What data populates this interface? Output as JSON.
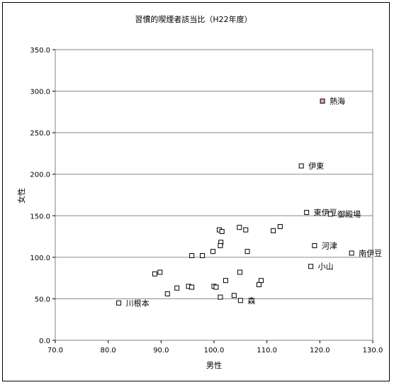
{
  "chart_data": {
    "type": "scatter",
    "title": "習慣的喫煙者該当比（H22年度）",
    "xlabel": "男性",
    "ylabel": "女性",
    "xlim": [
      70,
      130
    ],
    "ylim": [
      0,
      350
    ],
    "xticks": [
      "70.0",
      "80.0",
      "90.0",
      "100.0",
      "110.0",
      "120.0",
      "130.0"
    ],
    "yticks": [
      "0.0",
      "50.0",
      "100.0",
      "150.0",
      "200.0",
      "250.0",
      "300.0",
      "350.0"
    ],
    "grid": "horizontal",
    "marker_color": "#000000",
    "highlight_color": "#f0a0b8",
    "points": [
      {
        "x": 120.5,
        "y": 288,
        "label": "熱海",
        "highlight": true
      },
      {
        "x": 116.5,
        "y": 210,
        "label": "伊東"
      },
      {
        "x": 117.5,
        "y": 154,
        "label": "東伊豆"
      },
      {
        "x": 122.0,
        "y": 152,
        "label": "御殿場"
      },
      {
        "x": 119.0,
        "y": 114,
        "label": "河津"
      },
      {
        "x": 126.0,
        "y": 105,
        "label": "南伊豆"
      },
      {
        "x": 118.3,
        "y": 89,
        "label": "小山"
      },
      {
        "x": 82.0,
        "y": 45,
        "label": "川根本"
      },
      {
        "x": 105.0,
        "y": 48,
        "label": "森"
      },
      {
        "x": 101.0,
        "y": 133
      },
      {
        "x": 101.5,
        "y": 131
      },
      {
        "x": 104.8,
        "y": 136
      },
      {
        "x": 106.0,
        "y": 133
      },
      {
        "x": 111.2,
        "y": 132
      },
      {
        "x": 112.5,
        "y": 137
      },
      {
        "x": 101.3,
        "y": 118
      },
      {
        "x": 101.2,
        "y": 114
      },
      {
        "x": 99.8,
        "y": 107
      },
      {
        "x": 106.3,
        "y": 107
      },
      {
        "x": 95.8,
        "y": 102
      },
      {
        "x": 97.8,
        "y": 102
      },
      {
        "x": 88.8,
        "y": 80
      },
      {
        "x": 89.8,
        "y": 82
      },
      {
        "x": 104.9,
        "y": 82
      },
      {
        "x": 102.2,
        "y": 72
      },
      {
        "x": 108.9,
        "y": 72
      },
      {
        "x": 108.5,
        "y": 67
      },
      {
        "x": 93.0,
        "y": 63
      },
      {
        "x": 95.2,
        "y": 65
      },
      {
        "x": 95.8,
        "y": 64
      },
      {
        "x": 100.0,
        "y": 65
      },
      {
        "x": 100.4,
        "y": 64
      },
      {
        "x": 91.2,
        "y": 56
      },
      {
        "x": 103.8,
        "y": 54
      },
      {
        "x": 101.2,
        "y": 52
      }
    ]
  }
}
